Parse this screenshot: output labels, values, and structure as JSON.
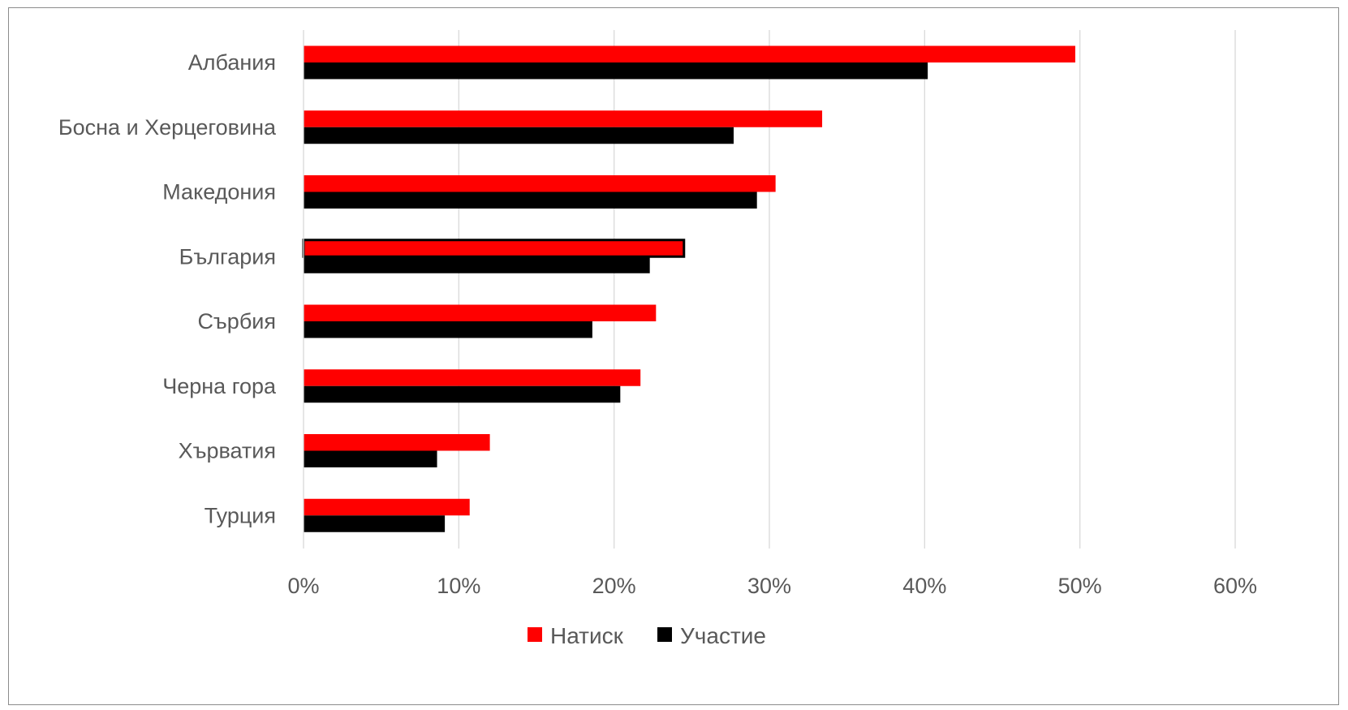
{
  "chart_data": {
    "type": "bar",
    "orientation": "horizontal",
    "categories": [
      "Албания",
      "Босна и Херцеговина",
      "Македония",
      "България",
      "Сърбия",
      "Черна гора",
      "Хърватия",
      "Турция"
    ],
    "series": [
      {
        "name": "Натиск",
        "color": "#ff0000",
        "values": [
          0.497,
          0.334,
          0.304,
          0.245,
          0.227,
          0.217,
          0.12,
          0.107
        ]
      },
      {
        "name": "Участие",
        "color": "#000000",
        "values": [
          0.402,
          0.277,
          0.292,
          0.223,
          0.186,
          0.204,
          0.086,
          0.091
        ]
      }
    ],
    "xlim": [
      0,
      0.6
    ],
    "x_ticks": [
      {
        "value": 0,
        "label": "0%"
      },
      {
        "value": 0.1,
        "label": "10%"
      },
      {
        "value": 0.2,
        "label": "20%"
      },
      {
        "value": 0.3,
        "label": "30%"
      },
      {
        "value": 0.4,
        "label": "40%"
      },
      {
        "value": 0.5,
        "label": "50%"
      },
      {
        "value": 0.6,
        "label": "60%"
      }
    ],
    "grid": true,
    "legend_position": "bottom",
    "highlighted_category": "България"
  }
}
